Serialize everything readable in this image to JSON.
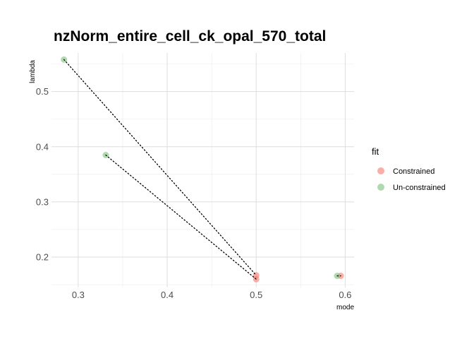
{
  "chart_data": {
    "type": "scatter",
    "title": "nzNorm_entire_cell_ck_opal_570_total",
    "xlabel": "mode",
    "ylabel": "lambda",
    "xlim": [
      0.27,
      0.61
    ],
    "ylim": [
      0.145,
      0.57
    ],
    "x_ticks": [
      0.3,
      0.4,
      0.5,
      0.6
    ],
    "x_tick_labels": [
      "0.3",
      "0.4",
      "0.5",
      "0.6"
    ],
    "y_ticks": [
      0.2,
      0.3,
      0.4,
      0.5
    ],
    "y_tick_labels": [
      "0.2",
      "0.3",
      "0.4",
      "0.5"
    ],
    "grid": true,
    "legend": {
      "title": "fit",
      "position": "right",
      "entries": [
        {
          "label": "Constrained",
          "color": "#f8766d"
        },
        {
          "label": "Un-constrained",
          "color": "#7cbf7c"
        }
      ]
    },
    "series": [
      {
        "name": "Constrained",
        "color": "#f8766d",
        "points": [
          {
            "x": 0.5,
            "y": 0.167
          },
          {
            "x": 0.5,
            "y": 0.16
          },
          {
            "x": 0.595,
            "y": 0.166
          }
        ]
      },
      {
        "name": "Un-constrained",
        "color": "#7cbf7c",
        "points": [
          {
            "x": 0.284,
            "y": 0.558
          },
          {
            "x": 0.331,
            "y": 0.385
          },
          {
            "x": 0.591,
            "y": 0.166
          }
        ]
      }
    ],
    "connectors": [
      {
        "x1": 0.284,
        "y1": 0.558,
        "x2": 0.5,
        "y2": 0.167
      },
      {
        "x1": 0.331,
        "y1": 0.385,
        "x2": 0.5,
        "y2": 0.16
      },
      {
        "x1": 0.591,
        "y1": 0.166,
        "x2": 0.595,
        "y2": 0.166
      }
    ]
  }
}
